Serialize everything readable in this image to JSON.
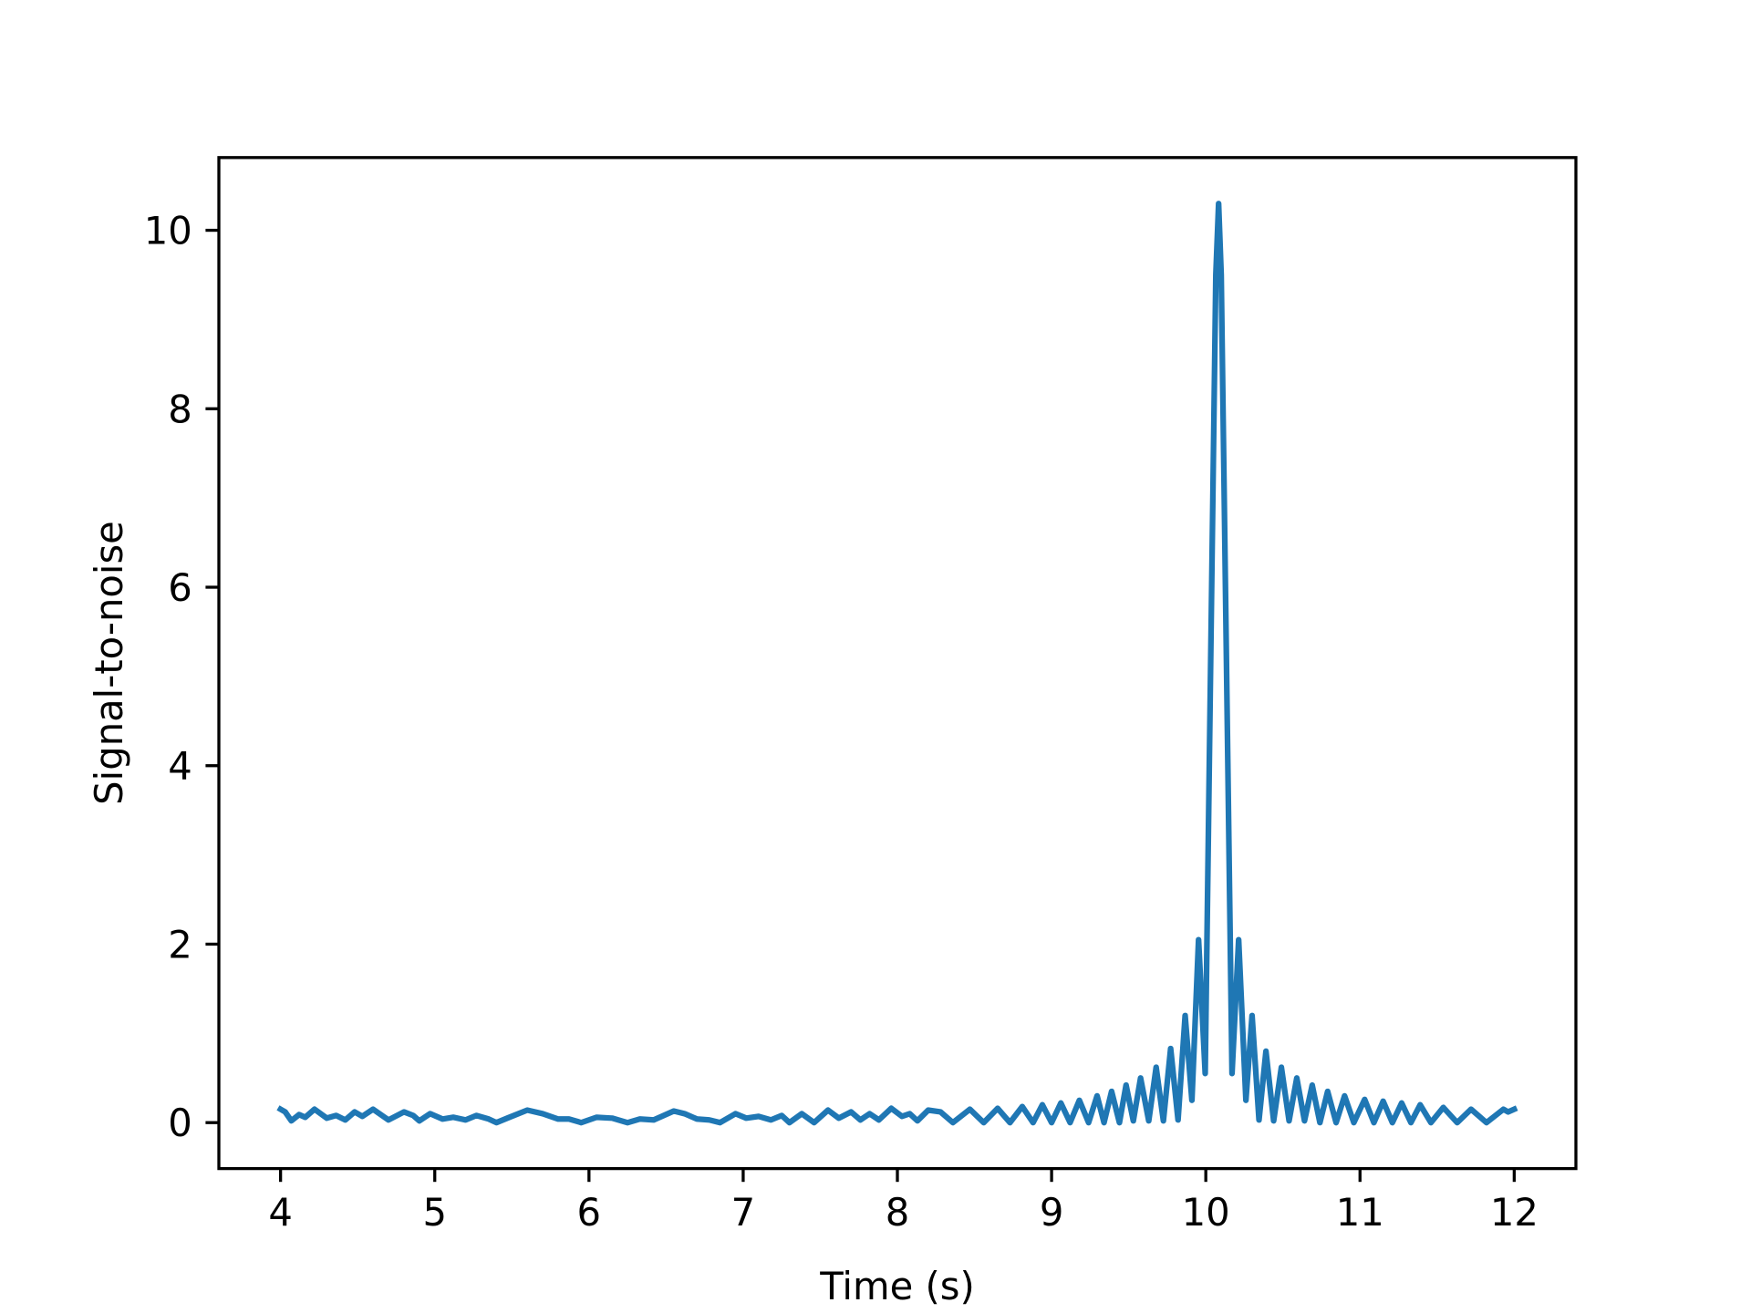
{
  "chart_data": {
    "type": "line",
    "xlabel": "Time (s)",
    "ylabel": "Signal-to-noise",
    "xlim": [
      3.6,
      12.4
    ],
    "ylim": [
      -0.515,
      10.815
    ],
    "xticks": [
      4,
      5,
      6,
      7,
      8,
      9,
      10,
      11,
      12
    ],
    "yticks": [
      0,
      2,
      4,
      6,
      8,
      10
    ],
    "series": [
      {
        "color": "#1f77b4",
        "x": [
          4.0,
          4.03,
          4.07,
          4.12,
          4.16,
          4.22,
          4.3,
          4.36,
          4.42,
          4.48,
          4.53,
          4.6,
          4.7,
          4.8,
          4.86,
          4.9,
          4.97,
          5.05,
          5.12,
          5.2,
          5.27,
          5.35,
          5.4,
          5.47,
          5.6,
          5.7,
          5.8,
          5.87,
          5.95,
          6.05,
          6.15,
          6.25,
          6.33,
          6.42,
          6.55,
          6.62,
          6.7,
          6.78,
          6.85,
          6.95,
          7.02,
          7.1,
          7.18,
          7.25,
          7.3,
          7.38,
          7.46,
          7.55,
          7.62,
          7.7,
          7.76,
          7.82,
          7.88,
          7.96,
          8.03,
          8.08,
          8.13,
          8.2,
          8.28,
          8.36,
          8.47,
          8.56,
          8.65,
          8.73,
          8.81,
          8.88,
          8.94,
          9.0,
          9.06,
          9.12,
          9.18,
          9.24,
          9.295,
          9.34,
          9.389,
          9.44,
          9.483,
          9.53,
          9.577,
          9.63,
          9.678,
          9.725,
          9.772,
          9.82,
          9.866,
          9.91,
          9.953,
          9.996,
          10.065,
          10.083,
          10.1,
          10.17,
          10.213,
          10.26,
          10.3,
          10.345,
          10.39,
          10.44,
          10.49,
          10.54,
          10.59,
          10.64,
          10.69,
          10.74,
          10.79,
          10.845,
          10.9,
          10.96,
          11.03,
          11.09,
          11.15,
          11.21,
          11.27,
          11.33,
          11.39,
          11.46,
          11.54,
          11.63,
          11.72,
          11.82,
          11.93,
          11.96,
          12.0
        ],
        "values": [
          0.15,
          0.12,
          0.02,
          0.09,
          0.06,
          0.15,
          0.05,
          0.08,
          0.03,
          0.12,
          0.07,
          0.15,
          0.03,
          0.12,
          0.08,
          0.02,
          0.1,
          0.04,
          0.06,
          0.03,
          0.08,
          0.04,
          0.0,
          0.05,
          0.14,
          0.1,
          0.04,
          0.04,
          0.0,
          0.06,
          0.05,
          0.0,
          0.04,
          0.03,
          0.13,
          0.1,
          0.04,
          0.03,
          0.0,
          0.1,
          0.05,
          0.07,
          0.03,
          0.08,
          0.0,
          0.1,
          0.0,
          0.14,
          0.05,
          0.12,
          0.03,
          0.1,
          0.03,
          0.16,
          0.07,
          0.1,
          0.02,
          0.14,
          0.12,
          0.0,
          0.15,
          0.0,
          0.16,
          0.0,
          0.18,
          0.0,
          0.2,
          0.0,
          0.22,
          0.0,
          0.25,
          0.0,
          0.3,
          0.0,
          0.35,
          0.0,
          0.42,
          0.02,
          0.5,
          0.02,
          0.62,
          0.02,
          0.83,
          0.03,
          1.2,
          0.25,
          2.05,
          0.55,
          9.5,
          10.3,
          9.5,
          0.55,
          2.05,
          0.25,
          1.2,
          0.03,
          0.8,
          0.02,
          0.62,
          0.02,
          0.5,
          0.02,
          0.42,
          0.0,
          0.35,
          0.0,
          0.3,
          0.0,
          0.26,
          0.0,
          0.24,
          0.0,
          0.22,
          0.0,
          0.2,
          0.0,
          0.17,
          0.0,
          0.15,
          0.0,
          0.15,
          0.12,
          0.15
        ]
      }
    ]
  }
}
